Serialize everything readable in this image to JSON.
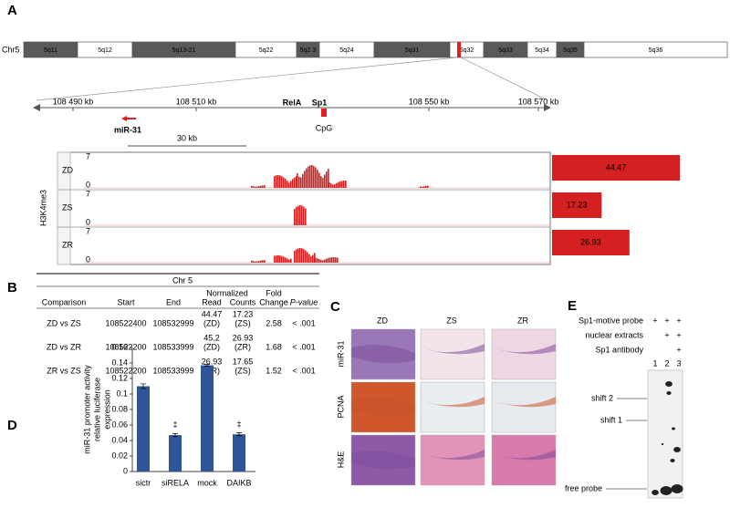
{
  "panel_a": {
    "label": "A",
    "chromosome": "Chr5",
    "bands": [
      "5q11",
      "5q12",
      "5q13-21",
      "5q22",
      "5q2 3",
      "5q24",
      "5q31",
      "5q32",
      "5q33",
      "5q34",
      "5q35",
      "5q36"
    ],
    "axis_labels": [
      "108 490 kb",
      "108 510  kb",
      "108 550  kb",
      "108 570  kb"
    ],
    "gene": "miR-31",
    "factors": [
      "RelA",
      "Sp1"
    ],
    "cpg": "CpG",
    "scale": "30 kb",
    "track_title": "H3K4me3",
    "track_max": "7",
    "track_min": "0",
    "tracks": [
      {
        "name": "ZD",
        "value": 44.47
      },
      {
        "name": "ZS",
        "value": 17.23
      },
      {
        "name": "ZR",
        "value": 26.93
      }
    ]
  },
  "panel_b": {
    "label": "B",
    "region": "Chr 5",
    "header_top": [
      "Normalized",
      "Fold"
    ],
    "header": [
      "Comparison",
      "Start",
      "End",
      "Read",
      "Counts",
      "Change",
      "P-value"
    ],
    "rows": [
      [
        "ZD vs ZS",
        "108522400",
        "108532999",
        [
          "44.47",
          "(ZD)"
        ],
        [
          "17.23",
          "(ZS)"
        ],
        "2.58",
        "< .001"
      ],
      [
        "ZD vs ZR",
        "108522200",
        "108533999",
        [
          "45.2",
          "(ZD)"
        ],
        [
          "26.93",
          "(ZR)"
        ],
        "1.68",
        "< .001"
      ],
      [
        "ZR vs ZS",
        "108522200",
        "108533999",
        [
          "26.93",
          "(ZR)"
        ],
        [
          "17.65",
          "(ZS)"
        ],
        "1.52",
        "< .001"
      ]
    ]
  },
  "panel_c": {
    "label": "C",
    "columns": [
      "ZD",
      "ZS",
      "ZR"
    ],
    "rows": [
      "miR-31",
      "PCNA",
      "H&E"
    ]
  },
  "panel_d": {
    "label": "D",
    "chart_data": {
      "type": "bar",
      "ylabel": [
        "miR-31 promoter activity",
        "relative luciferase",
        "expression"
      ],
      "categories": [
        "sictr",
        "siRELA",
        "mock",
        "DAIKB"
      ],
      "values": [
        0.11,
        0.047,
        0.137,
        0.048
      ],
      "errors": [
        0.003,
        0.002,
        0.001,
        0.002
      ],
      "annotations": [
        null,
        "‡",
        null,
        "‡"
      ],
      "color": "#2e5597",
      "ylim": [
        0,
        0.16
      ],
      "yticks": [
        0,
        0.02,
        0.04,
        0.06,
        0.08,
        0.1,
        0.12,
        0.14,
        0.16
      ]
    }
  },
  "panel_e": {
    "label": "E",
    "conditions": [
      {
        "name": "Sp1-motive probe",
        "marks": [
          "+",
          "+",
          "+"
        ]
      },
      {
        "name": "nuclear extracts",
        "marks": [
          "+",
          "+"
        ]
      },
      {
        "name": "Sp1 antibody",
        "marks": [
          "+"
        ]
      }
    ],
    "lanes": [
      "1",
      "2",
      "3"
    ],
    "bands": [
      "shift 2",
      "shift 1",
      "free probe"
    ]
  }
}
